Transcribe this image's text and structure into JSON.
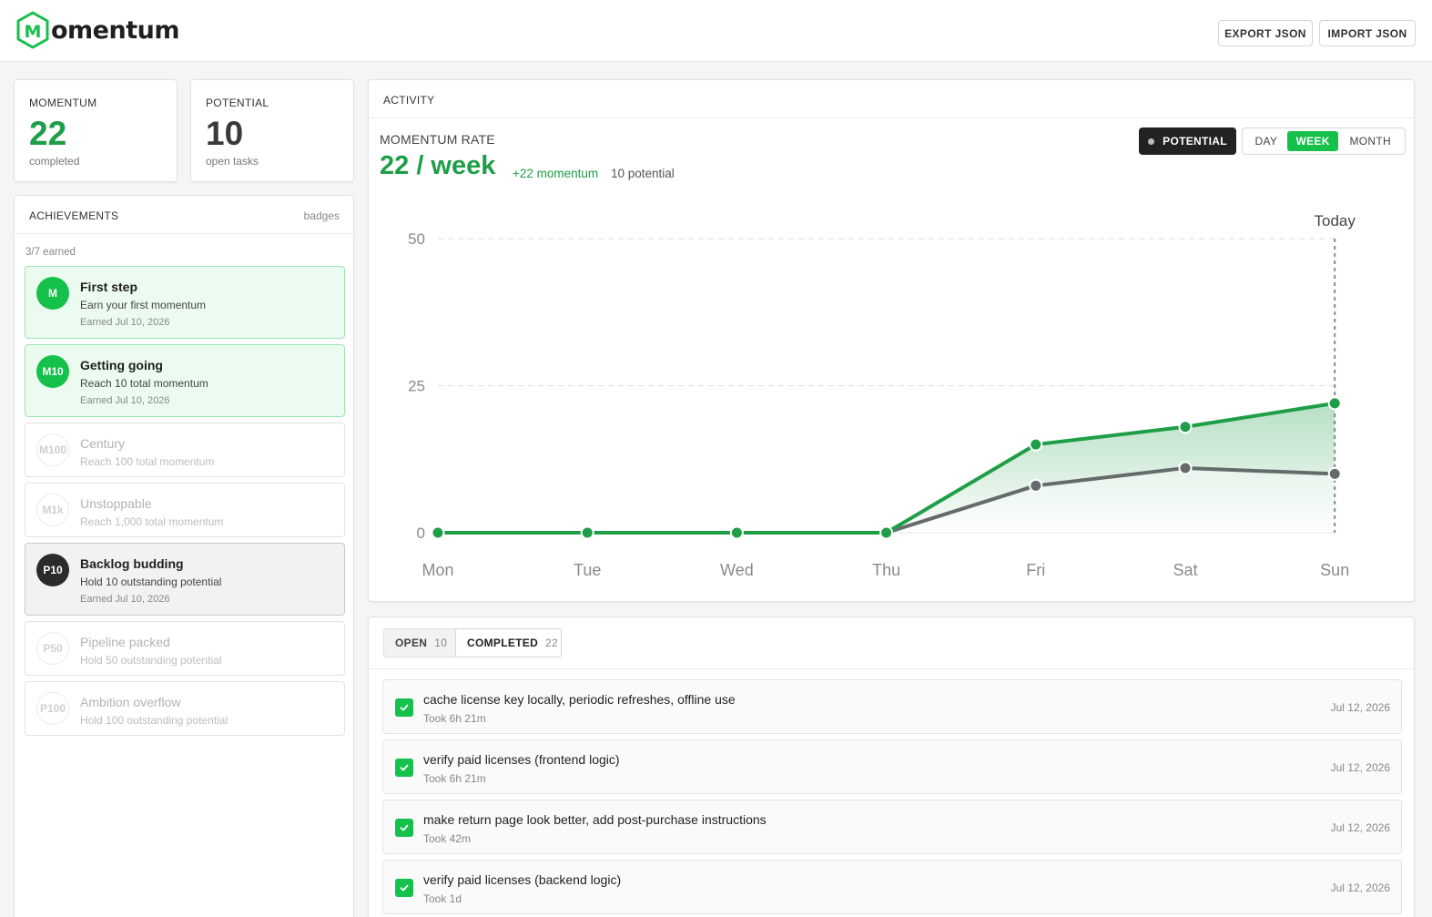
{
  "app": {
    "name": "omentum",
    "logo_letter": "M"
  },
  "header": {
    "export_label": "EXPORT JSON",
    "import_label": "IMPORT JSON"
  },
  "stats": {
    "momentum": {
      "label": "MOMENTUM",
      "value": "22",
      "sub": "completed"
    },
    "potential": {
      "label": "POTENTIAL",
      "value": "10",
      "sub": "open tasks"
    }
  },
  "achievements": {
    "title": "ACHIEVEMENTS",
    "badges_label": "badges",
    "earned_text": "3/7 earned",
    "items": [
      {
        "code": "M",
        "title": "First step",
        "desc": "Earn your first momentum",
        "earned": "Earned Jul 10, 2026",
        "state": "green"
      },
      {
        "code": "M10",
        "title": "Getting going",
        "desc": "Reach 10 total momentum",
        "earned": "Earned Jul 10, 2026",
        "state": "green"
      },
      {
        "code": "M100",
        "title": "Century",
        "desc": "Reach 100 total momentum",
        "earned": "",
        "state": "locked"
      },
      {
        "code": "M1k",
        "title": "Unstoppable",
        "desc": "Reach 1,000 total momentum",
        "earned": "",
        "state": "locked"
      },
      {
        "code": "P10",
        "title": "Backlog budding",
        "desc": "Hold 10 outstanding potential",
        "earned": "Earned Jul 10, 2026",
        "state": "dark"
      },
      {
        "code": "P50",
        "title": "Pipeline packed",
        "desc": "Hold 50 outstanding potential",
        "earned": "",
        "state": "locked"
      },
      {
        "code": "P100",
        "title": "Ambition overflow",
        "desc": "Hold 100 outstanding potential",
        "earned": "",
        "state": "locked"
      }
    ]
  },
  "activity": {
    "title": "ACTIVITY",
    "rate_label": "MOMENTUM RATE",
    "rate_value": "22 / week",
    "momentum_delta": "+22 momentum",
    "potential_text": "10 potential",
    "potential_toggle": "POTENTIAL",
    "ranges": {
      "day": "DAY",
      "week": "WEEK",
      "month": "MONTH",
      "selected": "week"
    }
  },
  "chart_data": {
    "type": "area",
    "categories": [
      "Mon",
      "Tue",
      "Wed",
      "Thu",
      "Fri",
      "Sat",
      "Sun"
    ],
    "series": [
      {
        "values": [
          0,
          0,
          0,
          0,
          15,
          18,
          22
        ],
        "color": "#1e9e47"
      },
      {
        "values": [
          0,
          0,
          0,
          0,
          8,
          11,
          10
        ],
        "color": "#656b6b"
      }
    ],
    "yticks": [
      0,
      25,
      50
    ],
    "ylim": [
      0,
      50
    ],
    "marker_label": "Today",
    "marker_category": "Sun",
    "grid": "horizontal dashed"
  },
  "tasks": {
    "tabs": [
      {
        "label": "OPEN",
        "count": "10"
      },
      {
        "label": "COMPLETED",
        "count": "22"
      }
    ],
    "items": [
      {
        "title": "cache license key locally, periodic refreshes, offline use",
        "duration": "Took 6h 21m",
        "date": "Jul 12, 2026"
      },
      {
        "title": "verify paid licenses (frontend logic)",
        "duration": "Took 6h 21m",
        "date": "Jul 12, 2026"
      },
      {
        "title": "make return page look better, add post-purchase instructions",
        "duration": "Took 42m",
        "date": "Jul 12, 2026"
      },
      {
        "title": "verify paid licenses (backend logic)",
        "duration": "Took 1d",
        "date": "Jul 12, 2026"
      }
    ]
  },
  "colors": {
    "accent": "#15c04b",
    "momentum_text": "#1e9e47",
    "potential_line": "#656b6b",
    "dark": "#222222"
  }
}
